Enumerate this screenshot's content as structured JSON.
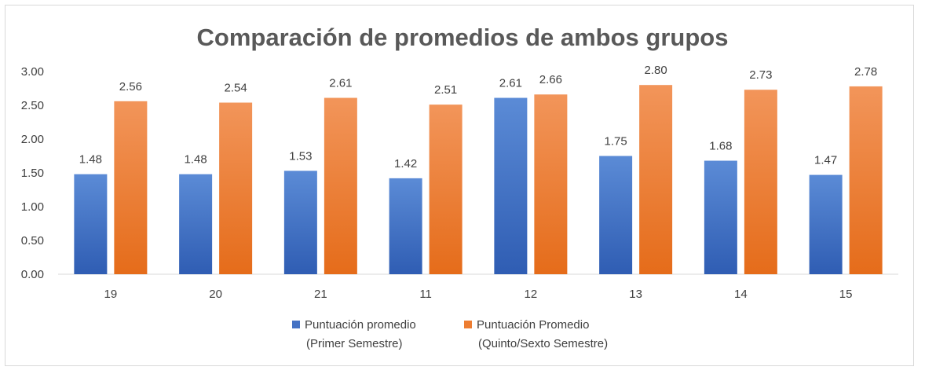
{
  "chart_data": {
    "type": "bar",
    "title": "Comparación de promedios de ambos grupos",
    "categories": [
      "19",
      "20",
      "21",
      "11",
      "12",
      "13",
      "14",
      "15"
    ],
    "y_ticks": [
      "0.00",
      "0.50",
      "1.00",
      "1.50",
      "2.00",
      "2.50",
      "3.00"
    ],
    "ylim": [
      0,
      3
    ],
    "grid": "none",
    "legend_position": "bottom",
    "series": [
      {
        "name": "Puntuación promedio (Primer Semestre)",
        "legend_lines": [
          "Puntuación promedio",
          "(Primer Semestre)"
        ],
        "color": "#4472C4",
        "values": [
          1.48,
          1.48,
          1.53,
          1.42,
          2.61,
          1.75,
          1.68,
          1.47
        ],
        "labels": [
          "1.48",
          "1.48",
          "1.53",
          "1.42",
          "2.61",
          "1.75",
          "1.68",
          "1.47"
        ]
      },
      {
        "name": "Puntuación Promedio (Quinto/Sexto Semestre)",
        "legend_lines": [
          "Puntuación Promedio",
          "(Quinto/Sexto Semestre)"
        ],
        "color": "#ED7D31",
        "values": [
          2.56,
          2.54,
          2.61,
          2.51,
          2.66,
          2.8,
          2.73,
          2.78
        ],
        "labels": [
          "2.56",
          "2.54",
          "2.61",
          "2.51",
          "2.66",
          "2.80",
          "2.73",
          "2.78"
        ]
      }
    ]
  }
}
